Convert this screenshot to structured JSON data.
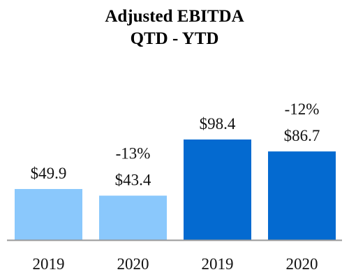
{
  "chart_data": {
    "type": "bar",
    "title_lines": [
      "Adjusted EBITDA",
      "QTD - YTD"
    ],
    "categories": [
      "2019",
      "2020",
      "2019",
      "2020"
    ],
    "values": [
      49.9,
      43.4,
      98.4,
      86.7
    ],
    "value_labels": [
      "$49.9",
      "$43.4",
      "$98.4",
      "$86.7"
    ],
    "change_labels": [
      "",
      "-13%",
      "",
      "-12%"
    ],
    "groups": [
      {
        "name": "QTD",
        "bar_indices": [
          0,
          1
        ],
        "color": "#8ac8fc"
      },
      {
        "name": "YTD",
        "bar_indices": [
          2,
          3
        ],
        "color": "#046ad0"
      }
    ],
    "ylim": [
      0,
      98.4
    ],
    "grid": false,
    "legend": "none"
  },
  "colors": {
    "qtd_bar": "#8ac8fc",
    "ytd_bar": "#046ad0",
    "axis": "#999999"
  }
}
